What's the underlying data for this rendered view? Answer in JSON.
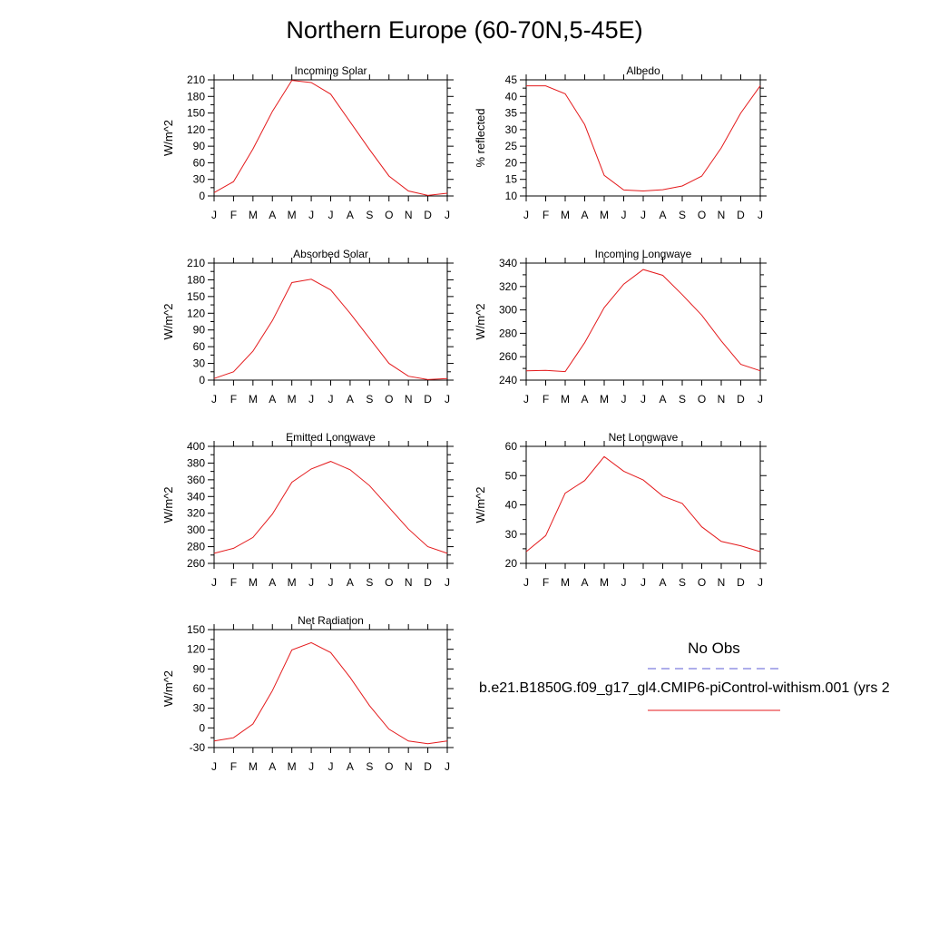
{
  "title": "Northern Europe (60-70N,5-45E)",
  "legend": {
    "obs_label": "No Obs",
    "obs_color": "#5b5bd6",
    "model_label": "b.e21.B1850G.f09_g17_gl4.CMIP6-piControl-withism.001 (yrs 2",
    "model_color": "#e41a1c"
  },
  "chart_data": [
    {
      "type": "line",
      "title": "Incoming Solar",
      "ylabel": "W/m^2",
      "x": [
        "J",
        "F",
        "M",
        "A",
        "M",
        "J",
        "J",
        "A",
        "S",
        "O",
        "N",
        "D",
        "J"
      ],
      "ylim": [
        0,
        210
      ],
      "yticks": [
        0,
        30,
        60,
        90,
        120,
        150,
        180,
        210
      ],
      "series": [
        {
          "values": [
            6,
            26,
            85,
            153,
            209,
            205,
            184,
            134,
            84,
            36,
            9,
            1,
            5
          ]
        }
      ]
    },
    {
      "type": "line",
      "title": "Albedo",
      "ylabel": "% reflected",
      "x": [
        "J",
        "F",
        "M",
        "A",
        "M",
        "J",
        "J",
        "A",
        "S",
        "O",
        "N",
        "D",
        "J"
      ],
      "ylim": [
        10,
        45
      ],
      "yticks": [
        10,
        15,
        20,
        25,
        30,
        35,
        40,
        45
      ],
      "series": [
        {
          "values": [
            43.2,
            43.2,
            40.8,
            31.5,
            16.2,
            11.8,
            11.5,
            11.9,
            13,
            16,
            24.5,
            35,
            43.2
          ]
        }
      ]
    },
    {
      "type": "line",
      "title": "Absorbed Solar",
      "ylabel": "W/m^2",
      "x": [
        "J",
        "F",
        "M",
        "A",
        "M",
        "J",
        "J",
        "A",
        "S",
        "O",
        "N",
        "D",
        "J"
      ],
      "ylim": [
        0,
        210
      ],
      "yticks": [
        0,
        30,
        60,
        90,
        120,
        150,
        180,
        210
      ],
      "series": [
        {
          "values": [
            3,
            15,
            52,
            107,
            175,
            181,
            162,
            120,
            75,
            30,
            7,
            1,
            3
          ]
        }
      ]
    },
    {
      "type": "line",
      "title": "Incoming Longwave",
      "ylabel": "W/m^2",
      "x": [
        "J",
        "F",
        "M",
        "A",
        "M",
        "J",
        "J",
        "A",
        "S",
        "O",
        "N",
        "D",
        "J"
      ],
      "ylim": [
        240,
        340
      ],
      "yticks": [
        240,
        260,
        280,
        300,
        320,
        340
      ],
      "series": [
        {
          "values": [
            248,
            248.3,
            247.3,
            272,
            302,
            322,
            334.5,
            329.5,
            313,
            295.5,
            273.5,
            253.5,
            248
          ]
        }
      ]
    },
    {
      "type": "line",
      "title": "Emitted Longwave",
      "ylabel": "W/m^2",
      "x": [
        "J",
        "F",
        "M",
        "A",
        "M",
        "J",
        "J",
        "A",
        "S",
        "O",
        "N",
        "D",
        "J"
      ],
      "ylim": [
        260,
        400
      ],
      "yticks": [
        260,
        280,
        300,
        320,
        340,
        360,
        380,
        400
      ],
      "series": [
        {
          "values": [
            272,
            278,
            291,
            319,
            357,
            373,
            382,
            372,
            353,
            327,
            301,
            280,
            272
          ]
        }
      ]
    },
    {
      "type": "line",
      "title": "Net Longwave",
      "ylabel": "W/m^2",
      "x": [
        "J",
        "F",
        "M",
        "A",
        "M",
        "J",
        "J",
        "A",
        "S",
        "O",
        "N",
        "D",
        "J"
      ],
      "ylim": [
        20,
        60
      ],
      "yticks": [
        20,
        30,
        40,
        50,
        60
      ],
      "series": [
        {
          "values": [
            24,
            29.5,
            44,
            48.3,
            56.5,
            51.5,
            48.5,
            43,
            40.5,
            32.5,
            27.5,
            26,
            24
          ]
        }
      ]
    },
    {
      "type": "line",
      "title": "Net Radiation",
      "ylabel": "W/m^2",
      "x": [
        "J",
        "F",
        "M",
        "A",
        "M",
        "J",
        "J",
        "A",
        "S",
        "O",
        "N",
        "D",
        "J"
      ],
      "ylim": [
        -30,
        150
      ],
      "yticks": [
        -30,
        0,
        30,
        60,
        90,
        120,
        150
      ],
      "series": [
        {
          "values": [
            -20,
            -15,
            6,
            57,
            119,
            130,
            115,
            77,
            34,
            -2,
            -20,
            -24,
            -20
          ]
        }
      ]
    }
  ]
}
